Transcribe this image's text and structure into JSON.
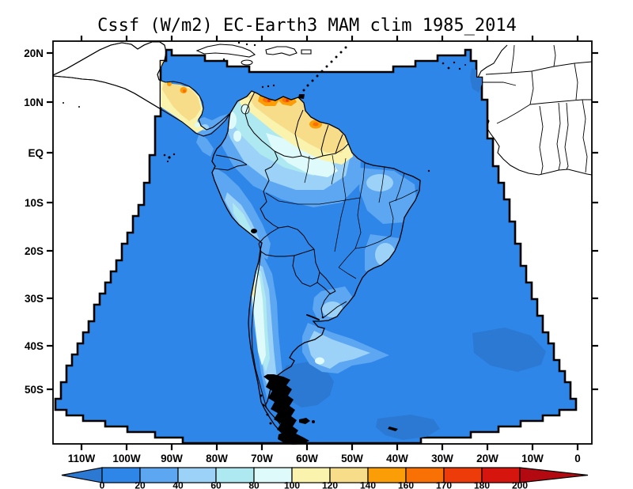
{
  "title": "Cssf (W/m2) EC-Earth3 MAM clim 1985_2014",
  "axes": {
    "lat_labels": [
      "20N",
      "10N",
      "EQ",
      "10S",
      "20S",
      "30S",
      "40S",
      "50S"
    ],
    "lon_labels": [
      "110W",
      "100W",
      "90W",
      "80W",
      "70W",
      "60W",
      "50W",
      "40W",
      "30W",
      "20W",
      "10W",
      "0"
    ]
  },
  "colorbar": {
    "tick_labels": [
      "0",
      "20",
      "40",
      "60",
      "80",
      "100",
      "120",
      "140",
      "160",
      "170",
      "180",
      "200"
    ],
    "colors": [
      "#2B79D2",
      "#2E86E8",
      "#5CA6F2",
      "#9CD2F8",
      "#AEE8F0",
      "#DFFAFA",
      "#FAF3AE",
      "#F7DC8A",
      "#FA9D06",
      "#F97004",
      "#EE3B0A",
      "#D6150F",
      "#B20A10"
    ]
  },
  "chart_data": {
    "type": "heatmap",
    "subtype": "filled_contour_map",
    "title": "Cssf (W/m2) EC-Earth3 MAM clim 1985_2014",
    "variable": "Cssf",
    "units": "W/m2",
    "model": "EC-Earth3",
    "season": "MAM",
    "climatology_period": "1985_2014",
    "contour_levels": [
      0,
      20,
      40,
      60,
      80,
      100,
      120,
      140,
      160,
      170,
      180,
      200
    ],
    "palette": [
      "#2B79D2",
      "#2E86E8",
      "#5CA6F2",
      "#9CD2F8",
      "#AEE8F0",
      "#DFFAFA",
      "#FAF3AE",
      "#F7DC8A",
      "#FA9D06",
      "#F97004",
      "#EE3B0A",
      "#D6150F",
      "#B20A10"
    ],
    "x_tick_labels": [
      "110W",
      "100W",
      "90W",
      "80W",
      "70W",
      "60W",
      "50W",
      "40W",
      "30W",
      "20W",
      "10W",
      "0"
    ],
    "y_tick_labels": [
      "20N",
      "10N",
      "EQ",
      "10S",
      "20S",
      "30S",
      "40S",
      "50S"
    ],
    "region": "South America regional model domain (fan-shaped), with Central America, Caribbean and West Africa coastlines outside the domain",
    "value_summary": "Mostly 0-20 over oceans and southern/central South America; 20-100 along the Andes, NE Brazil and SE Atlantic; 100-200 over northern South America (N Venezuela coast, Guyanas) and Central America; small below-0 patches in the South Atlantic and off Senegal",
    "legend_position": "bottom",
    "grid": false
  }
}
